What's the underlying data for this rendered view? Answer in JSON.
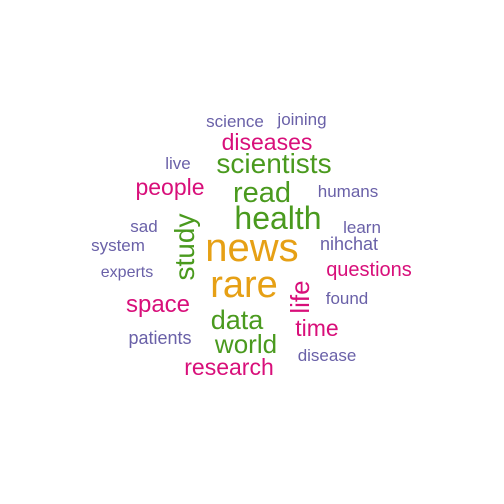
{
  "palette": {
    "gold": "#e6a015",
    "green": "#4a9a1e",
    "magenta": "#d80f7a",
    "purple": "#6a61a8"
  },
  "words": [
    {
      "text": "news",
      "color": "gold"
    },
    {
      "text": "rare",
      "color": "gold"
    },
    {
      "text": "health",
      "color": "green"
    },
    {
      "text": "scientists",
      "color": "green"
    },
    {
      "text": "read",
      "color": "green"
    },
    {
      "text": "study",
      "color": "green"
    },
    {
      "text": "data",
      "color": "green"
    },
    {
      "text": "world",
      "color": "green"
    },
    {
      "text": "diseases",
      "color": "magenta"
    },
    {
      "text": "people",
      "color": "magenta"
    },
    {
      "text": "space",
      "color": "magenta"
    },
    {
      "text": "life",
      "color": "magenta"
    },
    {
      "text": "time",
      "color": "magenta"
    },
    {
      "text": "questions",
      "color": "magenta"
    },
    {
      "text": "research",
      "color": "magenta"
    },
    {
      "text": "science",
      "color": "purple"
    },
    {
      "text": "joining",
      "color": "purple"
    },
    {
      "text": "live",
      "color": "purple"
    },
    {
      "text": "humans",
      "color": "purple"
    },
    {
      "text": "sad",
      "color": "purple"
    },
    {
      "text": "learn",
      "color": "purple"
    },
    {
      "text": "system",
      "color": "purple"
    },
    {
      "text": "nihchat",
      "color": "purple"
    },
    {
      "text": "experts",
      "color": "purple"
    },
    {
      "text": "found",
      "color": "purple"
    },
    {
      "text": "patients",
      "color": "purple"
    },
    {
      "text": "disease",
      "color": "purple"
    }
  ]
}
